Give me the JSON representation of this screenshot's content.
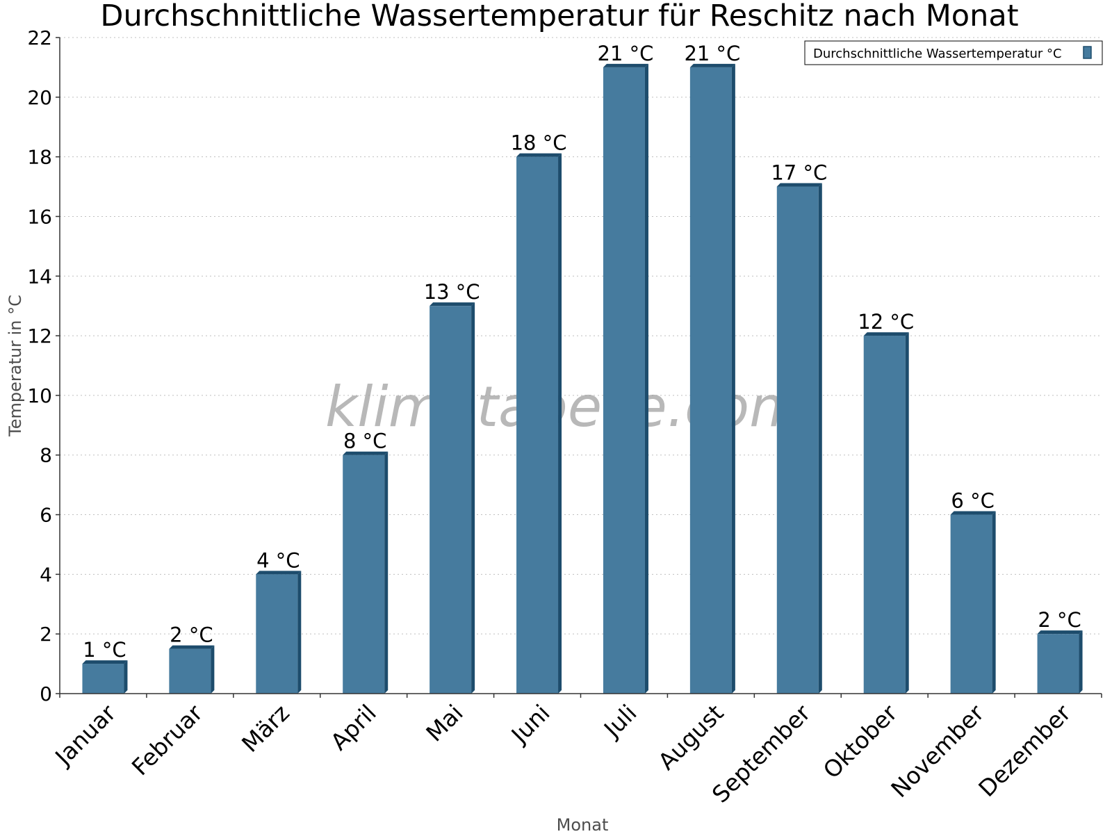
{
  "chart_data": {
    "type": "bar",
    "title": "Durchschnittliche Wassertemperatur für Reschitz nach Monat",
    "xlabel": "Monat",
    "ylabel": "Temperatur in °C",
    "categories": [
      "Januar",
      "Februar",
      "März",
      "April",
      "Mai",
      "Juni",
      "Juli",
      "August",
      "September",
      "Oktober",
      "November",
      "Dezember"
    ],
    "series": [
      {
        "name": "Durchschnittliche Wassertemperatur °C",
        "values": [
          1,
          1.5,
          4,
          8,
          13,
          18,
          21,
          21,
          17,
          12,
          6,
          2
        ],
        "labels": [
          "1 °C",
          "2 °C",
          "4 °C",
          "8 °C",
          "13 °C",
          "18 °C",
          "21 °C",
          "21 °C",
          "17 °C",
          "12 °C",
          "6 °C",
          "2 °C"
        ]
      }
    ],
    "ylim": [
      0,
      22
    ],
    "yticks": [
      0,
      2,
      4,
      6,
      8,
      10,
      12,
      14,
      16,
      18,
      20,
      22
    ],
    "grid": true,
    "legend_position": "top-right",
    "watermark": "klimatabelle.com",
    "colors": {
      "bar": "#467b9e",
      "bar_side": "#1d4c6c",
      "grid": "#bfbfbf",
      "axis": "#333333"
    }
  }
}
